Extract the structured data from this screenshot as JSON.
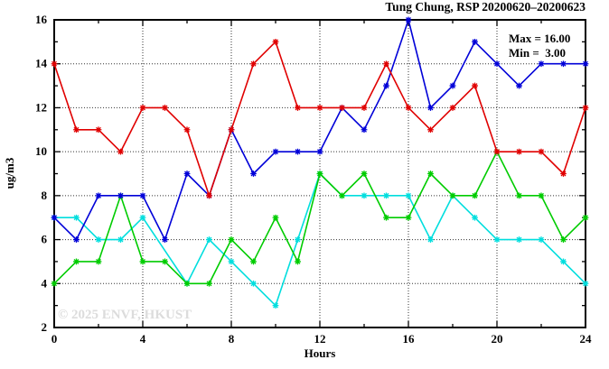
{
  "chart_data": {
    "type": "line",
    "title": "Tung Chung, RSP 20200620–20200623",
    "xlabel": "Hours",
    "ylabel": "ug/m3",
    "xlim": [
      0,
      24
    ],
    "ylim": [
      2,
      16
    ],
    "x_major_ticks": [
      0,
      4,
      8,
      12,
      16,
      20,
      24
    ],
    "x_minor_ticks": [
      2,
      6,
      10,
      14,
      18,
      22
    ],
    "y_major_ticks": [
      2,
      4,
      6,
      8,
      10,
      12,
      14,
      16
    ],
    "y_minor_ticks": [
      3,
      5,
      7,
      9,
      11,
      13,
      15
    ],
    "x_gridlines": [
      4,
      8,
      12,
      16,
      20
    ],
    "y_gridlines": [
      4,
      6,
      8,
      10,
      12,
      14
    ],
    "grid": "dotted",
    "legend": "none",
    "x": [
      0,
      1,
      2,
      3,
      4,
      5,
      6,
      7,
      8,
      9,
      10,
      11,
      12,
      13,
      14,
      15,
      16,
      17,
      18,
      19,
      20,
      21,
      22,
      23,
      24
    ],
    "series": [
      {
        "name": "cyan-series",
        "color": "#00dede",
        "values": [
          7,
          7,
          6,
          6,
          7,
          null,
          4,
          6,
          5,
          4,
          3,
          6,
          9,
          8,
          8,
          8,
          8,
          6,
          8,
          7,
          6,
          6,
          6,
          5,
          4
        ]
      },
      {
        "name": "green-series",
        "color": "#00cc00",
        "values": [
          4,
          5,
          5,
          8,
          5,
          5,
          4,
          4,
          6,
          5,
          7,
          5,
          9,
          8,
          9,
          7,
          7,
          9,
          8,
          8,
          10,
          8,
          8,
          6,
          7
        ]
      },
      {
        "name": "blue-series",
        "color": "#0000d8",
        "values": [
          7,
          6,
          8,
          8,
          8,
          6,
          9,
          8,
          11,
          9,
          10,
          10,
          10,
          12,
          11,
          13,
          16,
          12,
          13,
          15,
          14,
          13,
          14,
          14,
          14
        ]
      },
      {
        "name": "red-series",
        "color": "#e00000",
        "values": [
          14,
          11,
          11,
          10,
          12,
          12,
          11,
          8,
          11,
          14,
          15,
          12,
          12,
          12,
          12,
          14,
          12,
          11,
          12,
          13,
          10,
          10,
          10,
          9,
          12
        ]
      }
    ],
    "annotations": {
      "max_label": "Max = 16.00",
      "min_label": "Min =  3.00"
    },
    "watermark": "© 2025 ENVF, HKUST"
  }
}
